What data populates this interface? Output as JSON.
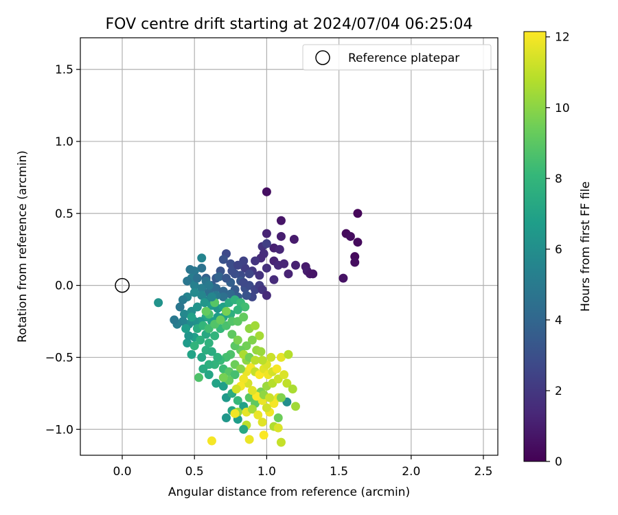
{
  "chart_data": {
    "type": "scatter",
    "title": "FOV centre drift starting at 2024/07/04 06:25:04",
    "xlabel": "Angular distance from reference (arcmin)",
    "ylabel": "Rotation from reference (arcmin)",
    "xlim": [
      -0.29,
      2.6
    ],
    "ylim": [
      -1.18,
      1.72
    ],
    "xticks": [
      0.0,
      0.5,
      1.0,
      1.5,
      2.0,
      2.5
    ],
    "xtick_labels": [
      "0.0",
      "0.5",
      "1.0",
      "1.5",
      "2.0",
      "2.5"
    ],
    "yticks": [
      -1.0,
      -0.5,
      0.0,
      0.5,
      1.0,
      1.5
    ],
    "ytick_labels": [
      "−1.0",
      "−0.5",
      "0.0",
      "0.5",
      "1.0",
      "1.5"
    ],
    "grid": true,
    "legend": {
      "placement": "top-right",
      "entries": [
        "Reference platepar"
      ]
    },
    "reference_point": {
      "label": "Reference platepar",
      "x": 0.0,
      "y": 0.0,
      "marker": "open-circle"
    },
    "colorbar": {
      "label": "Hours from first FF file",
      "colormap": "viridis",
      "range": [
        0,
        12.15
      ],
      "ticks": [
        0,
        2,
        4,
        6,
        8,
        10,
        12
      ],
      "tick_labels": [
        "0",
        "2",
        "4",
        "6",
        "8",
        "10",
        "12"
      ]
    },
    "series": [
      {
        "name": "FOV centre",
        "points": [
          [
            1.0,
            0.65,
            0.5
          ],
          [
            1.63,
            0.5,
            0.2
          ],
          [
            1.1,
            0.45,
            0.7
          ],
          [
            1.55,
            0.36,
            0.3
          ],
          [
            1.58,
            0.34,
            0.4
          ],
          [
            1.63,
            0.3,
            0.3
          ],
          [
            1.61,
            0.2,
            0.3
          ],
          [
            1.61,
            0.16,
            0.4
          ],
          [
            1.53,
            0.05,
            0.6
          ],
          [
            1.19,
            0.32,
            0.9
          ],
          [
            1.1,
            0.34,
            1.0
          ],
          [
            1.0,
            0.36,
            1.2
          ],
          [
            1.05,
            0.26,
            1.1
          ],
          [
            1.09,
            0.25,
            1.3
          ],
          [
            0.97,
            0.27,
            1.8
          ],
          [
            1.0,
            0.29,
            2.3
          ],
          [
            0.98,
            0.22,
            1.6
          ],
          [
            0.96,
            0.19,
            1.5
          ],
          [
            0.92,
            0.17,
            1.9
          ],
          [
            1.05,
            0.17,
            1.2
          ],
          [
            1.08,
            0.14,
            1.4
          ],
          [
            1.0,
            0.12,
            1.7
          ],
          [
            1.12,
            0.15,
            1.3
          ],
          [
            1.2,
            0.14,
            1.1
          ],
          [
            1.27,
            0.13,
            0.9
          ],
          [
            1.28,
            0.1,
            1.0
          ],
          [
            1.3,
            0.08,
            0.8
          ],
          [
            1.32,
            0.08,
            0.7
          ],
          [
            1.15,
            0.08,
            1.2
          ],
          [
            1.05,
            0.04,
            1.5
          ],
          [
            0.95,
            0.07,
            1.8
          ],
          [
            0.9,
            0.1,
            2.0
          ],
          [
            0.85,
            0.12,
            2.2
          ],
          [
            0.84,
            0.17,
            2.4
          ],
          [
            0.88,
            0.08,
            2.6
          ],
          [
            0.82,
            0.07,
            2.8
          ],
          [
            0.78,
            0.08,
            3.0
          ],
          [
            0.72,
            0.22,
            2.7
          ],
          [
            0.7,
            0.18,
            3.1
          ],
          [
            0.75,
            0.15,
            2.9
          ],
          [
            0.68,
            0.1,
            3.2
          ],
          [
            0.65,
            0.05,
            3.4
          ],
          [
            0.62,
            0.0,
            3.6
          ],
          [
            0.58,
            0.05,
            3.8
          ],
          [
            0.55,
            0.12,
            4.6
          ],
          [
            0.5,
            0.1,
            4.9
          ],
          [
            0.48,
            0.05,
            5.1
          ],
          [
            0.45,
            0.03,
            4.8
          ],
          [
            0.5,
            0.0,
            5.3
          ],
          [
            0.55,
            -0.02,
            5.2
          ],
          [
            0.58,
            0.03,
            4.7
          ],
          [
            0.6,
            -0.05,
            4.4
          ],
          [
            0.65,
            -0.02,
            4.2
          ],
          [
            0.7,
            -0.04,
            4.0
          ],
          [
            0.75,
            0.02,
            3.7
          ],
          [
            0.78,
            -0.03,
            3.5
          ],
          [
            0.82,
            0.03,
            3.3
          ],
          [
            0.85,
            -0.02,
            3.0
          ],
          [
            0.88,
            0.0,
            2.8
          ],
          [
            0.92,
            -0.03,
            2.5
          ],
          [
            0.95,
            0.0,
            2.2
          ],
          [
            0.97,
            -0.03,
            1.9
          ],
          [
            1.0,
            -0.07,
            1.5
          ],
          [
            0.9,
            -0.08,
            2.6
          ],
          [
            0.86,
            -0.07,
            3.2
          ],
          [
            0.8,
            -0.08,
            3.6
          ],
          [
            0.75,
            -0.06,
            4.1
          ],
          [
            0.7,
            -0.08,
            4.5
          ],
          [
            0.65,
            -0.07,
            5.0
          ],
          [
            0.6,
            -0.1,
            5.4
          ],
          [
            0.55,
            -0.07,
            5.6
          ],
          [
            0.5,
            -0.05,
            5.8
          ],
          [
            0.45,
            -0.08,
            5.5
          ],
          [
            0.42,
            -0.1,
            5.0
          ],
          [
            0.4,
            -0.15,
            4.8
          ],
          [
            0.43,
            -0.2,
            5.7
          ],
          [
            0.48,
            -0.18,
            6.0
          ],
          [
            0.52,
            -0.15,
            6.2
          ],
          [
            0.57,
            -0.12,
            6.4
          ],
          [
            0.62,
            -0.14,
            6.6
          ],
          [
            0.66,
            -0.16,
            6.3
          ],
          [
            0.7,
            -0.15,
            6.9
          ],
          [
            0.74,
            -0.12,
            7.4
          ],
          [
            0.78,
            -0.1,
            7.8
          ],
          [
            0.82,
            -0.12,
            8.2
          ],
          [
            0.85,
            -0.15,
            8.4
          ],
          [
            0.8,
            -0.17,
            8.0
          ],
          [
            0.75,
            -0.2,
            7.6
          ],
          [
            0.7,
            -0.22,
            7.0
          ],
          [
            0.66,
            -0.22,
            6.7
          ],
          [
            0.62,
            -0.25,
            6.8
          ],
          [
            0.58,
            -0.22,
            7.1
          ],
          [
            0.54,
            -0.25,
            6.5
          ],
          [
            0.5,
            -0.25,
            6.1
          ],
          [
            0.46,
            -0.27,
            5.9
          ],
          [
            0.42,
            -0.25,
            5.4
          ],
          [
            0.38,
            -0.27,
            5.2
          ],
          [
            0.36,
            -0.24,
            4.9
          ],
          [
            0.25,
            -0.12,
            6.2
          ],
          [
            0.45,
            -0.4,
            6.6
          ],
          [
            0.5,
            -0.36,
            6.8
          ],
          [
            0.48,
            -0.48,
            7.0
          ],
          [
            0.55,
            -0.5,
            7.2
          ],
          [
            0.58,
            -0.45,
            7.6
          ],
          [
            0.6,
            -0.4,
            7.8
          ],
          [
            0.64,
            -0.35,
            7.9
          ],
          [
            0.68,
            -0.3,
            8.1
          ],
          [
            0.72,
            -0.28,
            8.6
          ],
          [
            0.76,
            -0.25,
            8.8
          ],
          [
            0.8,
            -0.25,
            9.0
          ],
          [
            0.84,
            -0.22,
            9.2
          ],
          [
            0.88,
            -0.3,
            10.1
          ],
          [
            0.92,
            -0.28,
            10.4
          ],
          [
            0.95,
            -0.35,
            10.5
          ],
          [
            0.93,
            -0.45,
            10.2
          ],
          [
            0.9,
            -0.38,
            9.8
          ],
          [
            0.86,
            -0.42,
            9.5
          ],
          [
            0.82,
            -0.45,
            9.3
          ],
          [
            0.78,
            -0.42,
            9.0
          ],
          [
            0.75,
            -0.48,
            8.7
          ],
          [
            0.72,
            -0.5,
            8.5
          ],
          [
            0.68,
            -0.52,
            8.2
          ],
          [
            0.64,
            -0.55,
            7.9
          ],
          [
            0.6,
            -0.55,
            7.7
          ],
          [
            0.56,
            -0.58,
            7.4
          ],
          [
            0.53,
            -0.64,
            8.7
          ],
          [
            0.6,
            -0.62,
            7.2
          ],
          [
            0.65,
            -0.68,
            7.0
          ],
          [
            0.7,
            -0.7,
            6.8
          ],
          [
            0.72,
            -0.78,
            6.5
          ],
          [
            0.76,
            -0.75,
            7.4
          ],
          [
            0.8,
            -0.8,
            8.1
          ],
          [
            0.84,
            -0.84,
            6.9
          ],
          [
            0.88,
            -0.78,
            8.9
          ],
          [
            0.92,
            -0.82,
            9.1
          ],
          [
            0.96,
            -0.74,
            9.7
          ],
          [
            1.0,
            -0.7,
            10.3
          ],
          [
            1.04,
            -0.68,
            10.8
          ],
          [
            1.08,
            -0.65,
            11.2
          ],
          [
            1.12,
            -0.62,
            11.5
          ],
          [
            1.14,
            -0.68,
            11.0
          ],
          [
            1.18,
            -0.72,
            10.6
          ],
          [
            1.08,
            -0.78,
            11.7
          ],
          [
            1.05,
            -0.82,
            12.0
          ],
          [
            1.02,
            -0.88,
            11.9
          ],
          [
            1.0,
            -0.85,
            11.3
          ],
          [
            0.97,
            -0.8,
            11.8
          ],
          [
            0.93,
            -0.77,
            12.1
          ],
          [
            0.9,
            -0.73,
            11.6
          ],
          [
            0.87,
            -0.68,
            11.4
          ],
          [
            0.84,
            -0.65,
            11.9
          ],
          [
            0.82,
            -0.7,
            12.0
          ],
          [
            0.79,
            -0.72,
            11.3
          ],
          [
            0.86,
            -0.6,
            11.8
          ],
          [
            0.89,
            -0.57,
            12.0
          ],
          [
            0.92,
            -0.6,
            11.1
          ],
          [
            0.95,
            -0.62,
            12.1
          ],
          [
            0.98,
            -0.58,
            11.6
          ],
          [
            1.01,
            -0.62,
            11.9
          ],
          [
            1.04,
            -0.6,
            11.4
          ],
          [
            1.07,
            -0.58,
            12.0
          ],
          [
            1.0,
            -0.55,
            11.5
          ],
          [
            0.97,
            -0.52,
            10.9
          ],
          [
            1.03,
            -0.5,
            11.2
          ],
          [
            1.1,
            -0.5,
            11.7
          ],
          [
            1.15,
            -0.48,
            10.8
          ],
          [
            1.2,
            -0.84,
            10.4
          ],
          [
            1.14,
            -0.81,
            6.0
          ],
          [
            1.1,
            -0.78,
            9.8
          ],
          [
            1.08,
            -0.92,
            9.4
          ],
          [
            1.05,
            -0.98,
            10.7
          ],
          [
            1.08,
            -0.99,
            11.5
          ],
          [
            1.1,
            -1.09,
            11.1
          ],
          [
            0.98,
            -1.04,
            12.1
          ],
          [
            0.88,
            -1.07,
            11.8
          ],
          [
            0.97,
            -0.95,
            11.6
          ],
          [
            0.86,
            -0.97,
            10.9
          ],
          [
            0.84,
            -1.0,
            7.3
          ],
          [
            0.8,
            -0.93,
            6.7
          ],
          [
            0.76,
            -0.87,
            7.1
          ],
          [
            0.72,
            -0.92,
            6.4
          ],
          [
            0.8,
            -0.88,
            10.2
          ],
          [
            0.86,
            -0.88,
            11.7
          ],
          [
            0.78,
            -0.89,
            11.9
          ],
          [
            0.62,
            -1.08,
            12.0
          ],
          [
            0.9,
            -0.86,
            10.5
          ],
          [
            0.94,
            -0.9,
            11.8
          ],
          [
            0.98,
            -0.76,
            10.1
          ],
          [
            1.02,
            -0.78,
            11.2
          ],
          [
            0.66,
            -0.5,
            7.8
          ],
          [
            0.7,
            -0.58,
            8.3
          ],
          [
            0.74,
            -0.6,
            8.9
          ],
          [
            0.78,
            -0.55,
            9.4
          ],
          [
            0.82,
            -0.58,
            9.9
          ],
          [
            0.86,
            -0.52,
            10.0
          ],
          [
            0.78,
            -0.62,
            8.5
          ],
          [
            0.74,
            -0.66,
            9.2
          ],
          [
            0.7,
            -0.64,
            9.6
          ],
          [
            0.62,
            -0.46,
            7.5
          ],
          [
            0.58,
            -0.34,
            7.3
          ],
          [
            0.54,
            -0.38,
            7.7
          ],
          [
            0.5,
            -0.42,
            7.9
          ],
          [
            0.46,
            -0.35,
            6.3
          ],
          [
            0.44,
            -0.3,
            6.7
          ],
          [
            0.48,
            -0.22,
            6.9
          ],
          [
            0.52,
            -0.3,
            7.5
          ],
          [
            0.56,
            -0.28,
            8.0
          ],
          [
            0.6,
            -0.3,
            8.4
          ],
          [
            0.64,
            -0.27,
            8.8
          ],
          [
            0.68,
            -0.24,
            9.3
          ],
          [
            0.72,
            -0.18,
            9.6
          ],
          [
            0.76,
            -0.34,
            9.1
          ],
          [
            0.8,
            -0.38,
            9.7
          ],
          [
            0.84,
            -0.48,
            10.6
          ],
          [
            0.88,
            -0.5,
            9.5
          ],
          [
            0.92,
            -0.52,
            10.9
          ],
          [
            0.96,
            -0.46,
            10.3
          ],
          [
            0.6,
            -0.2,
            8.6
          ],
          [
            0.64,
            -0.12,
            8.9
          ],
          [
            0.58,
            -0.18,
            9.2
          ],
          [
            0.62,
            -0.08,
            5.6
          ],
          [
            0.67,
            0.06,
            3.9
          ],
          [
            0.72,
            0.05,
            3.3
          ],
          [
            0.76,
            0.1,
            2.9
          ],
          [
            0.8,
            0.14,
            2.5
          ],
          [
            0.84,
            0.02,
            2.7
          ],
          [
            0.52,
            0.05,
            4.5
          ],
          [
            0.47,
            0.11,
            4.8
          ],
          [
            0.55,
            0.19,
            5.5
          ],
          [
            0.6,
            0.0,
            5.0
          ]
        ]
      }
    ]
  }
}
